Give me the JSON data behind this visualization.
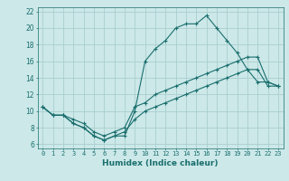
{
  "xlabel": "Humidex (Indice chaleur)",
  "ylabel": "",
  "bg_color": "#cce8e8",
  "grid_color": "#aacece",
  "line_color": "#1a6e6e",
  "xlim": [
    -0.5,
    23.5
  ],
  "ylim": [
    5.5,
    22.5
  ],
  "xticks": [
    0,
    1,
    2,
    3,
    4,
    5,
    6,
    7,
    8,
    9,
    10,
    11,
    12,
    13,
    14,
    15,
    16,
    17,
    18,
    19,
    20,
    21,
    22,
    23
  ],
  "yticks": [
    6,
    8,
    10,
    12,
    14,
    16,
    18,
    20,
    22
  ],
  "series1_x": [
    0,
    1,
    2,
    3,
    4,
    5,
    6,
    7,
    8,
    9,
    10,
    11,
    12,
    13,
    14,
    15,
    16,
    17,
    18,
    19,
    20,
    21,
    22,
    23
  ],
  "series1_y": [
    10.5,
    9.5,
    9.5,
    8.5,
    8.0,
    7.0,
    6.5,
    7.0,
    7.0,
    10.0,
    16.0,
    17.5,
    18.5,
    20.0,
    20.5,
    20.5,
    21.5,
    20.0,
    18.5,
    17.0,
    15.0,
    13.5,
    13.5,
    13.0
  ],
  "series2_x": [
    0,
    1,
    2,
    3,
    4,
    5,
    6,
    7,
    8,
    9,
    10,
    11,
    12,
    13,
    14,
    15,
    16,
    17,
    18,
    19,
    20,
    21,
    22,
    23
  ],
  "series2_y": [
    10.5,
    9.5,
    9.5,
    9.0,
    8.5,
    7.5,
    7.0,
    7.5,
    8.0,
    10.5,
    11.0,
    12.0,
    12.5,
    13.0,
    13.5,
    14.0,
    14.5,
    15.0,
    15.5,
    16.0,
    16.5,
    16.5,
    13.5,
    13.0
  ],
  "series3_x": [
    0,
    1,
    2,
    3,
    4,
    5,
    6,
    7,
    8,
    9,
    10,
    11,
    12,
    13,
    14,
    15,
    16,
    17,
    18,
    19,
    20,
    21,
    22,
    23
  ],
  "series3_y": [
    10.5,
    9.5,
    9.5,
    8.5,
    8.0,
    7.0,
    6.5,
    7.0,
    7.5,
    9.0,
    10.0,
    10.5,
    11.0,
    11.5,
    12.0,
    12.5,
    13.0,
    13.5,
    14.0,
    14.5,
    15.0,
    15.0,
    13.0,
    13.0
  ],
  "xlabel_fontsize": 6.5,
  "tick_fontsize_x": 5.0,
  "tick_fontsize_y": 5.5
}
